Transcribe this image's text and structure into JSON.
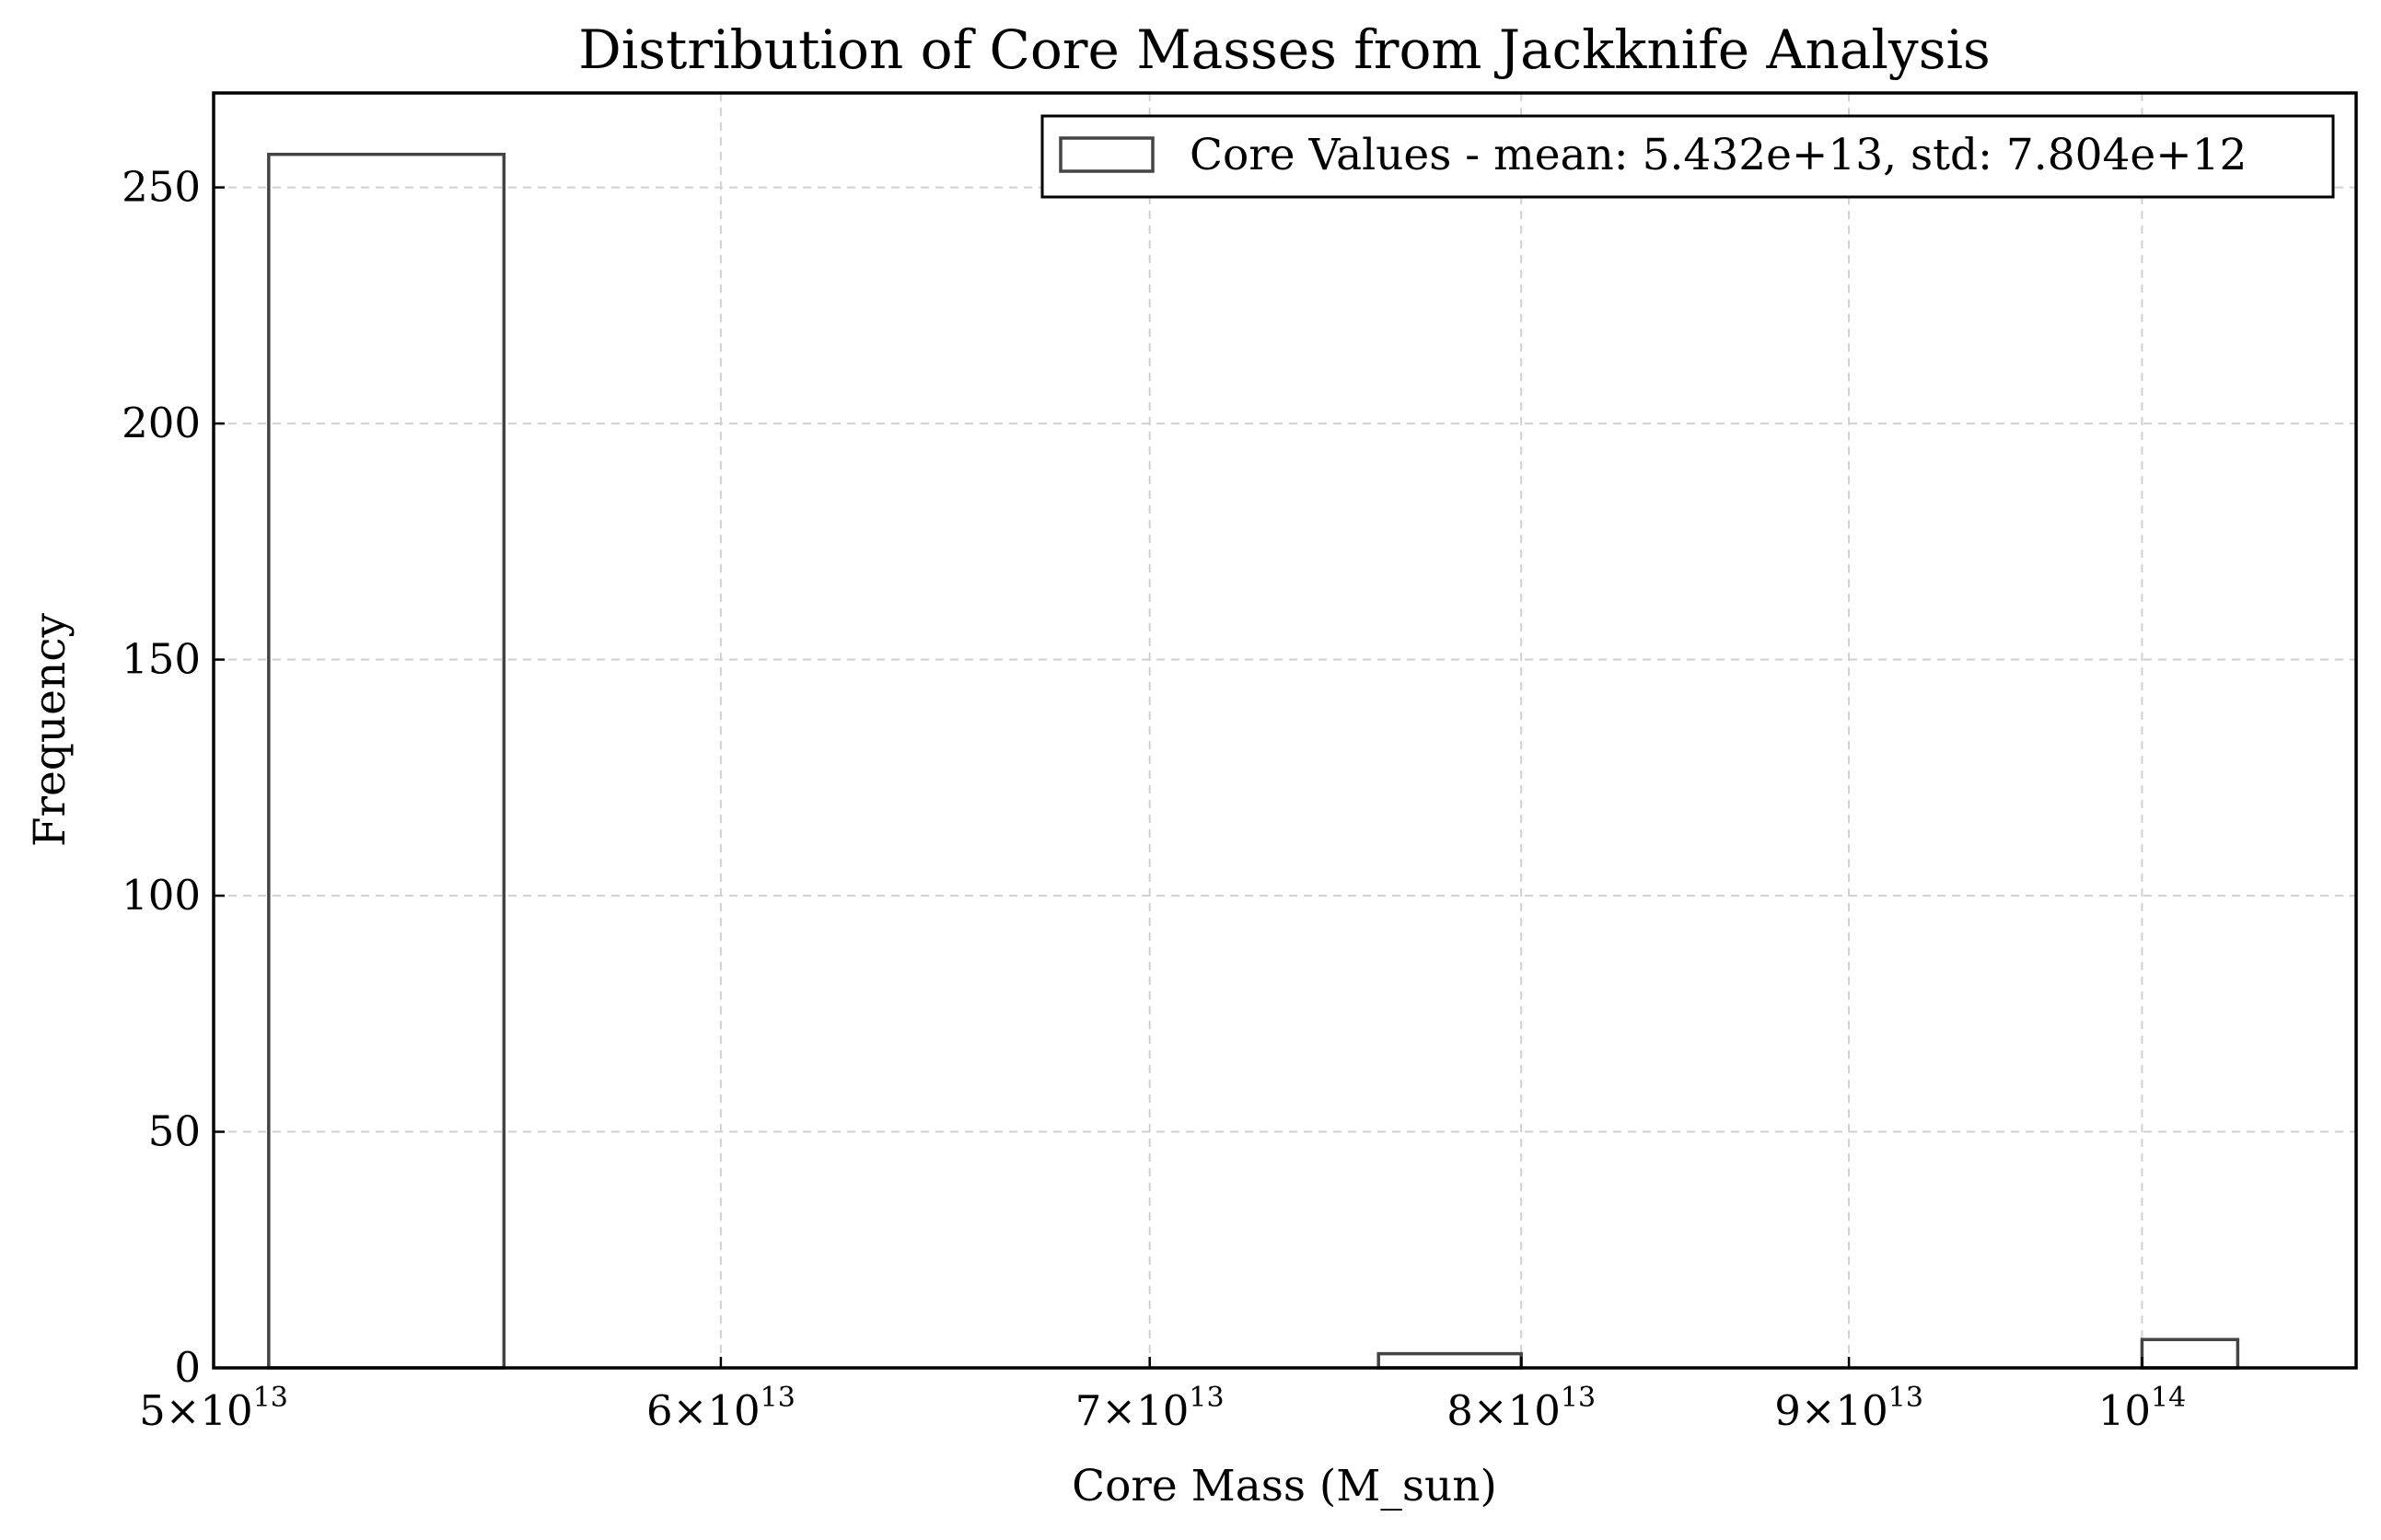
{
  "chart_data": {
    "type": "bar",
    "title": "Distribution of Core Masses from Jackknife Analysis",
    "xlabel": "Core Mass (M_sun)",
    "ylabel": "Frequency",
    "x_scale": "log",
    "xlim": [
      50000000000000.0,
      108000000000000.0
    ],
    "ylim": [
      0,
      270
    ],
    "grid": true,
    "legend_position": "upper right",
    "x_ticks": [
      {
        "value": 50000000000000.0,
        "mantissa": "5",
        "base": "10",
        "exponent": "13"
      },
      {
        "value": 60000000000000.0,
        "mantissa": "6",
        "base": "10",
        "exponent": "13"
      },
      {
        "value": 70000000000000.0,
        "mantissa": "7",
        "base": "10",
        "exponent": "13"
      },
      {
        "value": 80000000000000.0,
        "mantissa": "8",
        "base": "10",
        "exponent": "13"
      },
      {
        "value": 90000000000000.0,
        "mantissa": "9",
        "base": "10",
        "exponent": "13"
      },
      {
        "value": 100000000000000.0,
        "mantissa": "",
        "base": "10",
        "exponent": "14"
      }
    ],
    "y_ticks": [
      0,
      50,
      100,
      150,
      200,
      250
    ],
    "series": [
      {
        "name": "Core Values - mean: 5.432e+13, std: 7.804e+12",
        "color": "#444444",
        "bins": [
          {
            "x0": 51000000000000.0,
            "x1": 55500000000000.0,
            "count": 257
          },
          {
            "x0": 76000000000000.0,
            "x1": 80000000000000.0,
            "count": 3
          },
          {
            "x0": 100000000000000.0,
            "x1": 103500000000000.0,
            "count": 6
          }
        ]
      }
    ]
  }
}
